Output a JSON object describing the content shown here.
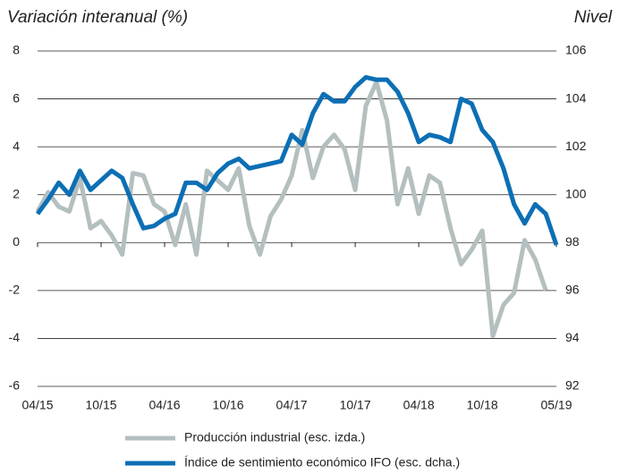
{
  "chart_data": {
    "type": "line",
    "y_title": "Variación interanual (%)",
    "y2_title": "Nivel",
    "categories": [
      "04/15",
      null,
      null,
      null,
      null,
      null,
      "10/15",
      null,
      null,
      null,
      null,
      null,
      "04/16",
      null,
      null,
      null,
      null,
      null,
      "10/16",
      null,
      null,
      null,
      null,
      null,
      "04/17",
      null,
      null,
      null,
      null,
      null,
      "10/17",
      null,
      null,
      null,
      null,
      null,
      "04/18",
      null,
      null,
      null,
      null,
      null,
      "10/18",
      null,
      null,
      null,
      null,
      null,
      null,
      "05/19"
    ],
    "series": [
      {
        "name": "Producción industrial (esc. izda.)",
        "color": "#b4bfbf",
        "axis": "y",
        "values": [
          1.3,
          2.1,
          1.5,
          1.3,
          2.7,
          0.6,
          0.9,
          0.3,
          -0.5,
          2.9,
          2.8,
          1.6,
          1.3,
          -0.1,
          1.6,
          -0.5,
          3.0,
          2.6,
          2.2,
          3.1,
          0.7,
          -0.5,
          1.1,
          1.8,
          2.8,
          4.7,
          2.7,
          4.0,
          4.5,
          3.9,
          2.2,
          5.7,
          6.7,
          5.1,
          1.6,
          3.1,
          1.2,
          2.8,
          2.5,
          0.6,
          -0.9,
          -0.3,
          0.5,
          -3.9,
          -2.6,
          -2.1,
          0.1,
          -0.7,
          -2.0,
          null
        ]
      },
      {
        "name": "Índice de sentimiento económico IFO (esc. dcha.)",
        "color": "#0c6fb5",
        "axis": "y2",
        "values": [
          99.2,
          99.8,
          100.5,
          100.0,
          101.0,
          100.2,
          100.6,
          101.0,
          100.7,
          99.6,
          98.6,
          98.7,
          99.0,
          99.2,
          100.5,
          100.5,
          100.2,
          100.9,
          101.3,
          101.5,
          101.1,
          101.2,
          101.3,
          101.4,
          102.5,
          102.1,
          103.4,
          104.2,
          103.9,
          103.9,
          104.5,
          104.9,
          104.8,
          104.8,
          104.3,
          103.4,
          102.2,
          102.5,
          102.4,
          102.2,
          104.0,
          103.8,
          102.7,
          102.2,
          101.1,
          99.6,
          98.8,
          99.6,
          99.2,
          97.9
        ]
      }
    ],
    "ylim": [
      -6,
      8
    ],
    "yticks": [
      -6,
      -4,
      -2,
      0,
      2,
      4,
      6,
      8
    ],
    "y2lim": [
      92,
      106
    ],
    "y2ticks": [
      92,
      94,
      96,
      98,
      100,
      102,
      104,
      106
    ],
    "grid": true,
    "legend": "bottom"
  }
}
